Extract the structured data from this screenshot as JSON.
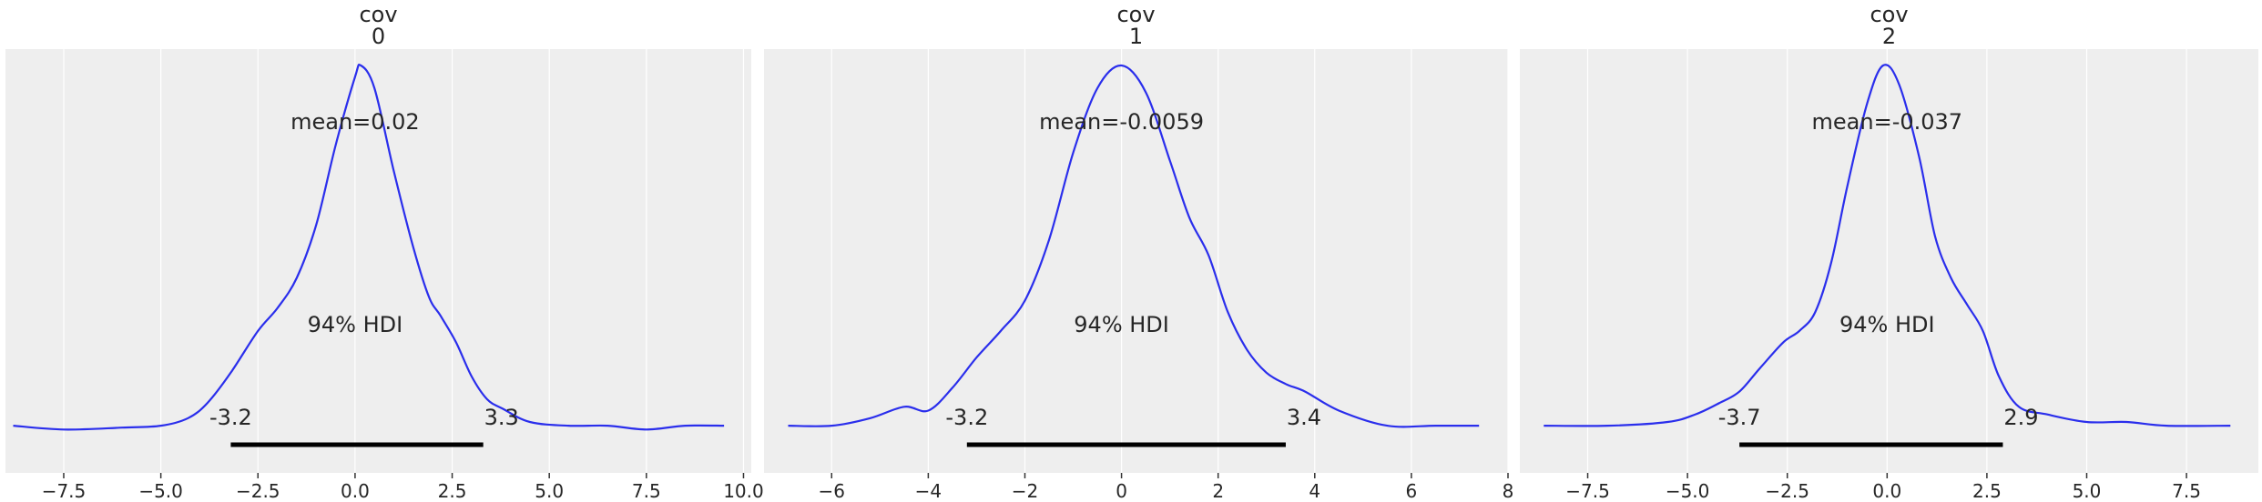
{
  "chart_data": [
    {
      "type": "line",
      "title_var": "cov",
      "title_idx": "0",
      "xlim": [
        -9.0,
        10.2
      ],
      "ylim": [
        0,
        1
      ],
      "xticks": [
        -7.5,
        -5.0,
        -2.5,
        0.0,
        2.5,
        5.0,
        7.5,
        10.0
      ],
      "xtick_labels": [
        "−7.5",
        "−5.0",
        "−2.5",
        "0.0",
        "2.5",
        "5.0",
        "7.5",
        "10.0"
      ],
      "density": {
        "x": [
          -8.8,
          -7.5,
          -6.0,
          -5.0,
          -4.3,
          -3.8,
          -3.2,
          -2.5,
          -2.0,
          -1.5,
          -1.0,
          -0.5,
          0.0,
          0.15,
          0.5,
          1.0,
          1.5,
          1.9,
          2.2,
          2.6,
          3.0,
          3.4,
          3.8,
          4.5,
          5.5,
          6.5,
          7.5,
          8.5,
          9.5
        ],
        "y": [
          0.05,
          0.04,
          0.045,
          0.05,
          0.07,
          0.11,
          0.19,
          0.3,
          0.36,
          0.44,
          0.58,
          0.79,
          0.97,
          1.0,
          0.94,
          0.72,
          0.52,
          0.39,
          0.34,
          0.27,
          0.18,
          0.12,
          0.095,
          0.06,
          0.05,
          0.05,
          0.04,
          0.05,
          0.05
        ]
      },
      "mean_label": "mean=0.02",
      "hdi_label": "94% HDI",
      "hdi": [
        -3.2,
        3.3
      ],
      "hdi_low_label": "-3.2",
      "hdi_high_label": "3.3"
    },
    {
      "type": "line",
      "title_var": "cov",
      "title_idx": "1",
      "xlim": [
        -7.4,
        8.0
      ],
      "ylim": [
        0,
        1
      ],
      "xticks": [
        -6,
        -4,
        -2,
        0,
        2,
        4,
        6,
        8
      ],
      "xtick_labels": [
        "−6",
        "−4",
        "−2",
        "0",
        "2",
        "4",
        "6",
        "8"
      ],
      "density": {
        "x": [
          -6.9,
          -6.0,
          -5.2,
          -4.5,
          -4.0,
          -3.5,
          -3.0,
          -2.5,
          -2.0,
          -1.5,
          -1.0,
          -0.5,
          0.0,
          0.5,
          1.0,
          1.4,
          1.8,
          2.2,
          2.6,
          3.0,
          3.4,
          3.8,
          4.5,
          5.5,
          6.5,
          7.4
        ],
        "y": [
          0.05,
          0.05,
          0.07,
          0.1,
          0.09,
          0.15,
          0.23,
          0.3,
          0.38,
          0.54,
          0.77,
          0.94,
          1.0,
          0.93,
          0.75,
          0.6,
          0.5,
          0.35,
          0.25,
          0.19,
          0.16,
          0.14,
          0.09,
          0.05,
          0.05,
          0.05
        ]
      },
      "mean_label": "mean=-0.0059",
      "hdi_label": "94% HDI",
      "hdi": [
        -3.2,
        3.4
      ],
      "hdi_low_label": "-3.2",
      "hdi_high_label": "3.4"
    },
    {
      "type": "line",
      "title_var": "cov",
      "title_idx": "2",
      "xlim": [
        -9.2,
        9.3
      ],
      "ylim": [
        0,
        1
      ],
      "xticks": [
        -7.5,
        -5.0,
        -2.5,
        0.0,
        2.5,
        5.0,
        7.5
      ],
      "xtick_labels": [
        "−7.5",
        "−5.0",
        "−2.5",
        "0.0",
        "2.5",
        "5.0",
        "7.5"
      ],
      "density": {
        "x": [
          -8.6,
          -7.0,
          -5.5,
          -4.8,
          -4.2,
          -3.7,
          -3.2,
          -2.6,
          -2.2,
          -1.8,
          -1.4,
          -1.0,
          -0.5,
          -0.1,
          0.3,
          0.8,
          1.2,
          1.6,
          2.0,
          2.4,
          2.8,
          3.3,
          4.0,
          5.0,
          6.0,
          7.0,
          8.6
        ],
        "y": [
          0.05,
          0.05,
          0.06,
          0.08,
          0.11,
          0.14,
          0.2,
          0.27,
          0.3,
          0.35,
          0.48,
          0.68,
          0.9,
          1.0,
          0.95,
          0.76,
          0.55,
          0.44,
          0.37,
          0.3,
          0.18,
          0.1,
          0.08,
          0.06,
          0.06,
          0.05,
          0.05
        ]
      },
      "mean_label": "mean=-0.037",
      "hdi_label": "94% HDI",
      "hdi": [
        -3.7,
        2.9
      ],
      "hdi_low_label": "-3.7",
      "hdi_high_label": "2.9"
    }
  ]
}
